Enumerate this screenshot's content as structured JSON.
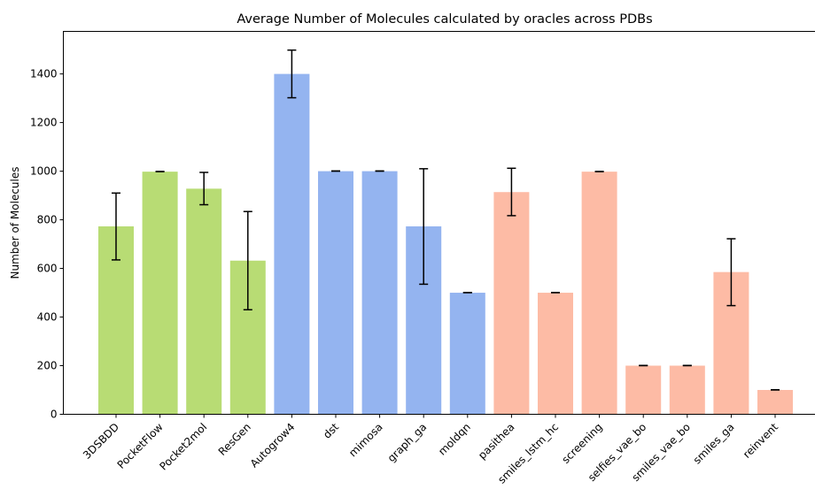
{
  "chart_data": {
    "type": "bar",
    "title": "Average Number of Molecules calculated by oracles across PDBs",
    "xlabel": "",
    "ylabel": "Number of Molecules",
    "ylim": [
      0,
      1575
    ],
    "yticks": [
      0,
      200,
      400,
      600,
      800,
      1000,
      1200,
      1400
    ],
    "grid": false,
    "categories": [
      "3DSBDD",
      "PocketFlow",
      "Pocket2mol",
      "ResGen",
      "Autogrow4",
      "dst",
      "mimosa",
      "graph_ga",
      "moldqn",
      "pasithea",
      "smiles_lstm_hc",
      "screening",
      "selfies_vae_bo",
      "smiles_vae_bo",
      "smiles_ga",
      "reinvent"
    ],
    "values": [
      773,
      998,
      928,
      632,
      1400,
      1000,
      1000,
      773,
      500,
      914,
      500,
      998,
      200,
      200,
      585,
      100
    ],
    "error_lower": [
      635,
      998,
      862,
      430,
      1302,
      1000,
      1000,
      535,
      500,
      817,
      500,
      998,
      200,
      200,
      447,
      100
    ],
    "error_upper": [
      910,
      999,
      995,
      834,
      1498,
      1001,
      1001,
      1010,
      501,
      1012,
      501,
      999,
      201,
      201,
      722,
      101
    ],
    "colors": [
      "#b8dc74",
      "#b8dc74",
      "#b8dc74",
      "#b8dc74",
      "#94b4f0",
      "#94b4f0",
      "#94b4f0",
      "#94b4f0",
      "#94b4f0",
      "#fdbba5",
      "#fdbba5",
      "#fdbba5",
      "#fdbba5",
      "#fdbba5",
      "#fdbba5",
      "#fdbba5"
    ]
  }
}
